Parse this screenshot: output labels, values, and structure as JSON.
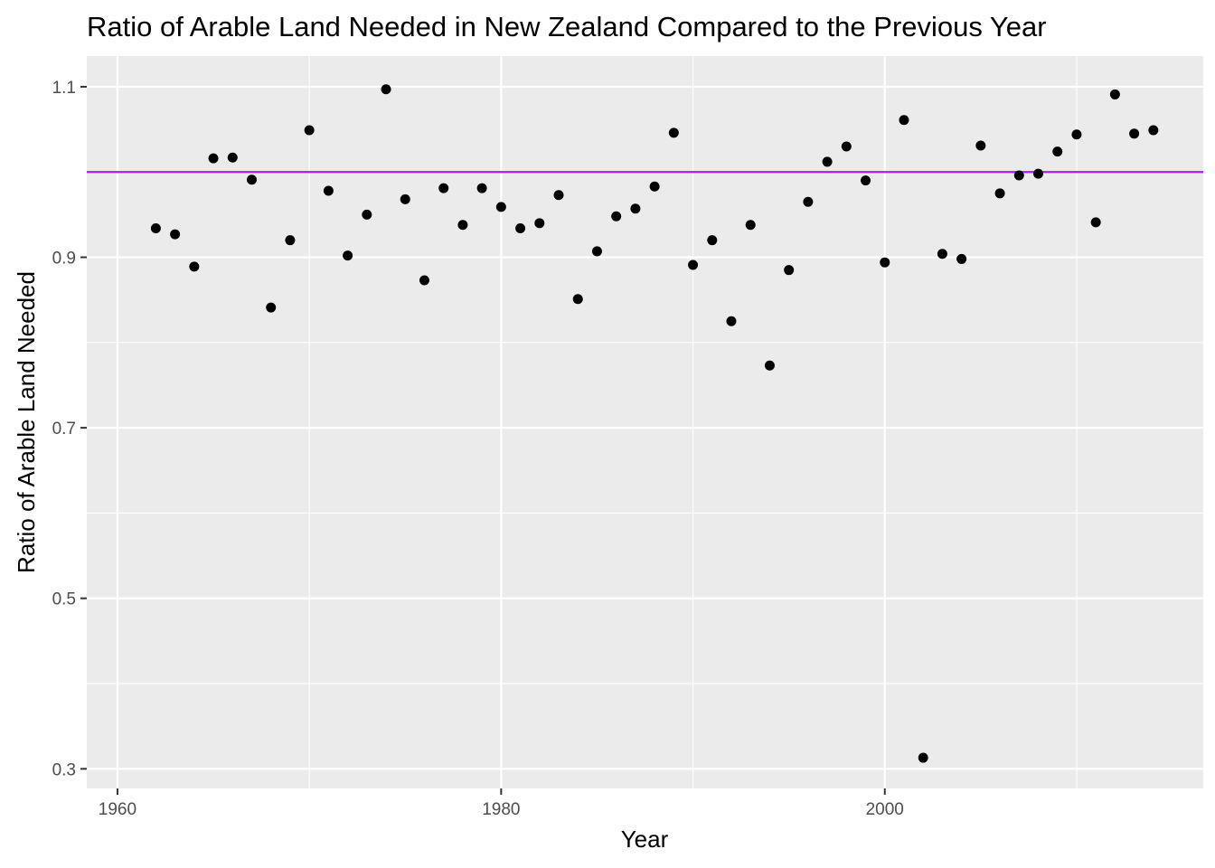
{
  "chart_data": {
    "type": "scatter",
    "title": "Ratio of Arable Land Needed in New Zealand Compared to the Previous Year",
    "xlabel": "Year",
    "ylabel": "Ratio of Arable Land Needed",
    "xlim": [
      1958.4,
      2016.6
    ],
    "ylim": [
      0.277,
      1.136
    ],
    "x_ticks": [
      1960,
      1980,
      2000
    ],
    "y_ticks": [
      0.3,
      0.5,
      0.7,
      0.9,
      1.1
    ],
    "x_tick_labels": [
      "1960",
      "1980",
      "2000"
    ],
    "y_tick_labels": [
      "0.3",
      "0.5",
      "0.7",
      "0.9",
      "1.1"
    ],
    "grid": true,
    "reference_line": {
      "y": 1.0,
      "color": "#a020f0"
    },
    "panel_color": "#ebebeb",
    "point_color": "#000000",
    "x": [
      1962,
      1963,
      1964,
      1965,
      1966,
      1967,
      1968,
      1969,
      1970,
      1971,
      1972,
      1973,
      1974,
      1975,
      1976,
      1977,
      1978,
      1979,
      1980,
      1981,
      1982,
      1983,
      1984,
      1985,
      1986,
      1987,
      1988,
      1989,
      1990,
      1991,
      1992,
      1993,
      1994,
      1995,
      1996,
      1997,
      1998,
      1999,
      2000,
      2001,
      2002,
      2003,
      2004,
      2005,
      2006,
      2007,
      2008,
      2009,
      2010,
      2011,
      2012,
      2013,
      2014
    ],
    "y": [
      0.934,
      0.927,
      0.889,
      1.016,
      1.017,
      0.991,
      0.841,
      0.92,
      1.049,
      0.978,
      0.902,
      0.95,
      1.097,
      0.968,
      0.873,
      0.981,
      0.938,
      0.981,
      0.959,
      0.934,
      0.94,
      0.973,
      0.851,
      0.907,
      0.948,
      0.957,
      0.983,
      1.046,
      0.891,
      0.92,
      0.825,
      0.938,
      0.773,
      0.885,
      0.965,
      1.012,
      1.03,
      0.99,
      0.894,
      1.061,
      0.313,
      0.904,
      0.898,
      1.031,
      0.975,
      0.996,
      0.998,
      1.024,
      1.044,
      0.941,
      1.091,
      1.045,
      1.049
    ]
  }
}
